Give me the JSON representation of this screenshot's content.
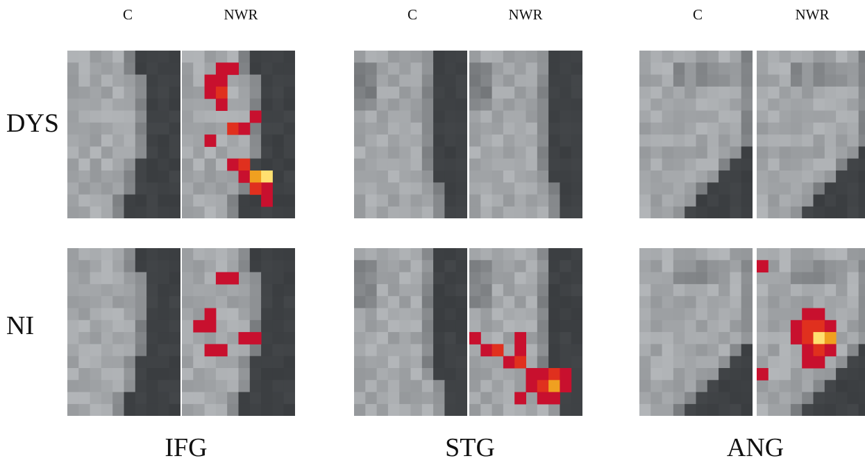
{
  "column_labels": [
    "C",
    "NWR"
  ],
  "row_labels": [
    "DYS",
    "NI"
  ],
  "regions": [
    "IFG",
    "STG",
    "ANG"
  ],
  "colors": {
    "activation_dark": "#c8102e",
    "activation_mid": "#e0301e",
    "activation_hot": "#f0a020",
    "activation_peak": "#ffe070",
    "background": "#ffffff"
  }
}
